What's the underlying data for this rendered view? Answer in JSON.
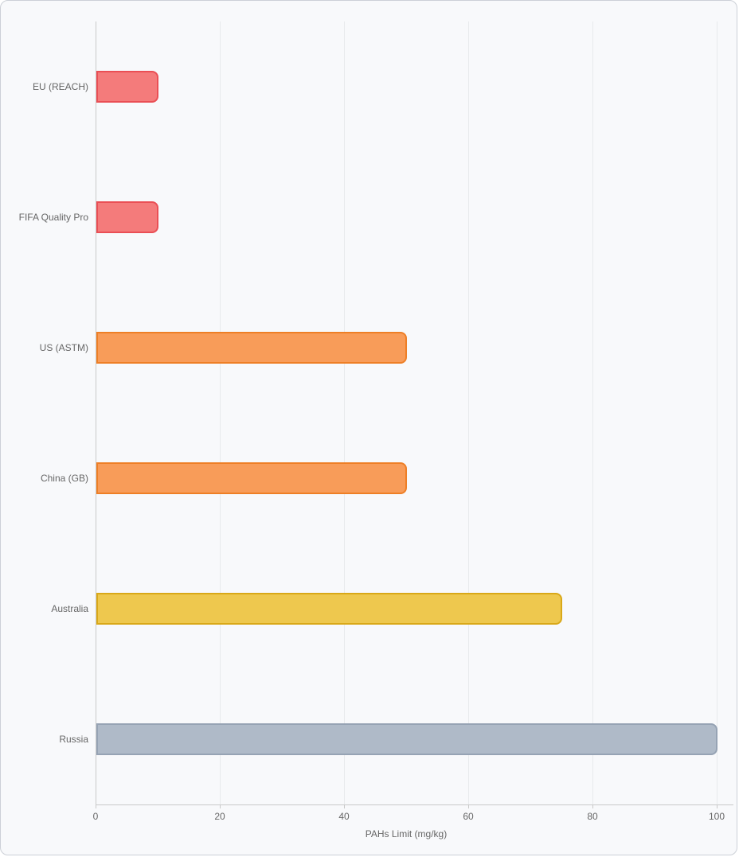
{
  "chart_data": {
    "type": "bar",
    "orientation": "horizontal",
    "title": "",
    "categories": [
      "EU (REACH)",
      "FIFA Quality Pro",
      "US (ASTM)",
      "China (GB)",
      "Australia",
      "Russia"
    ],
    "values": [
      10,
      10,
      50,
      50,
      75,
      100
    ],
    "bar_fill_colors": [
      "#f47b7b",
      "#f47b7b",
      "#f89c59",
      "#f89c59",
      "#eec84e",
      "#afbac8"
    ],
    "bar_border_colors": [
      "#ea4f55",
      "#ea4f55",
      "#ee7f26",
      "#ee7f26",
      "#d9a818",
      "#96a3b4"
    ],
    "xlabel": "PAHs Limit (mg/kg)",
    "ylabel": "",
    "xlim": [
      0,
      100
    ],
    "x_ticks": [
      "0",
      "20",
      "40",
      "60",
      "80",
      "100"
    ],
    "grid": true,
    "legend": false
  },
  "theme": {
    "card_background": "#f8f9fb",
    "card_border": "#ccd0d7",
    "grid_color": "#e8eaec",
    "axis_color": "#c9c9c9",
    "text_color": "#666666"
  }
}
